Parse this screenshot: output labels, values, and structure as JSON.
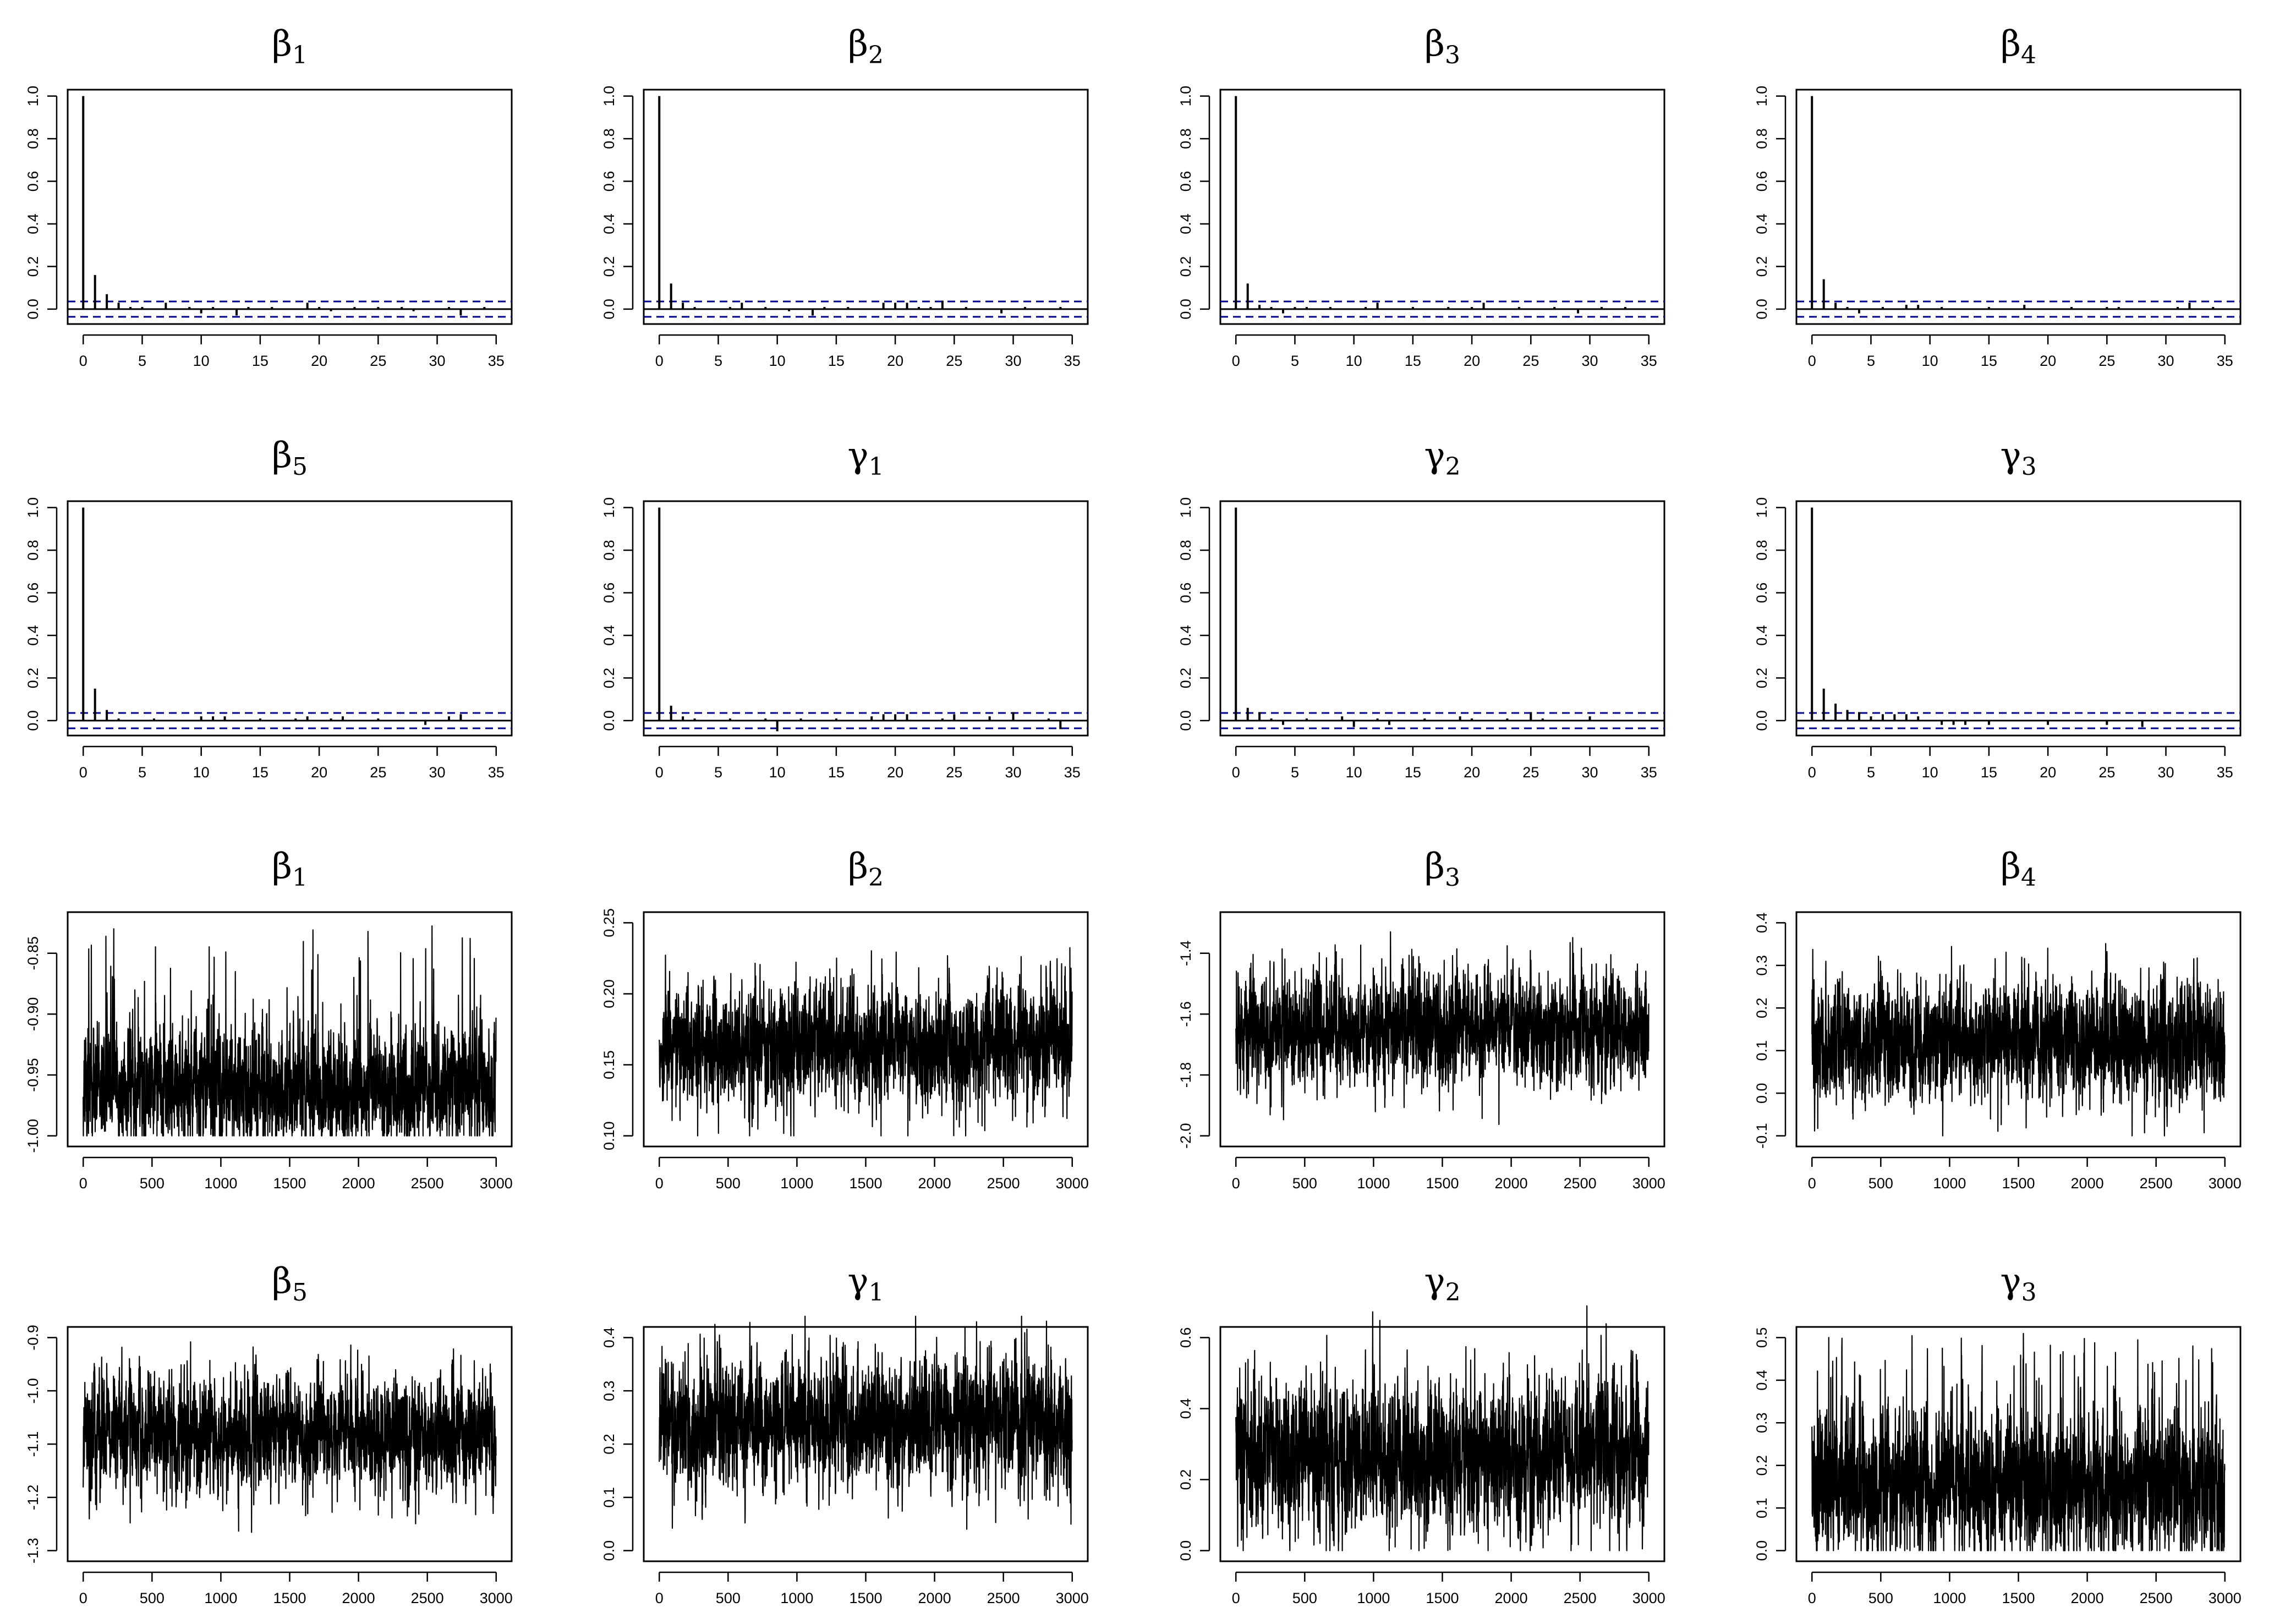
{
  "figure": {
    "background": "#ffffff",
    "line_color": "#000000",
    "ci_color": "#00008B"
  },
  "chart_data": [
    {
      "type": "acf",
      "symbol": "β",
      "subscript": "1",
      "xlim": [
        0,
        35
      ],
      "ylim": [
        0,
        1
      ],
      "xticks": [
        "0",
        "5",
        "10",
        "15",
        "20",
        "25",
        "30",
        "35"
      ],
      "yticks": [
        "0.0",
        "0.2",
        "0.4",
        "0.6",
        "0.8",
        "1.0"
      ],
      "ci": 0.036,
      "lags": [
        0,
        1,
        2,
        3,
        4,
        5,
        6,
        7,
        8,
        9,
        10,
        11,
        12,
        13,
        14,
        15,
        16,
        17,
        18,
        19,
        20,
        21,
        22,
        23,
        24,
        25,
        26,
        27,
        28,
        29,
        30,
        31,
        32,
        33,
        34
      ],
      "values": [
        1.0,
        0.16,
        0.07,
        0.03,
        0.01,
        0.01,
        0.0,
        0.03,
        0.0,
        0.01,
        -0.02,
        0.01,
        0.0,
        -0.03,
        0.01,
        0.0,
        0.01,
        0.0,
        0.0,
        0.03,
        0.01,
        -0.01,
        0.0,
        0.01,
        0.0,
        0.01,
        0.0,
        0.01,
        -0.01,
        0.0,
        0.0,
        0.01,
        -0.03,
        0.0,
        0.01
      ]
    },
    {
      "type": "acf",
      "symbol": "β",
      "subscript": "2",
      "xlim": [
        0,
        35
      ],
      "ylim": [
        0,
        1
      ],
      "xticks": [
        "0",
        "5",
        "10",
        "15",
        "20",
        "25",
        "30",
        "35"
      ],
      "yticks": [
        "0.0",
        "0.2",
        "0.4",
        "0.6",
        "0.8",
        "1.0"
      ],
      "ci": 0.036,
      "lags": [
        0,
        1,
        2,
        3,
        4,
        5,
        6,
        7,
        8,
        9,
        10,
        11,
        12,
        13,
        14,
        15,
        16,
        17,
        18,
        19,
        20,
        21,
        22,
        23,
        24,
        25,
        26,
        27,
        28,
        29,
        30,
        31,
        32,
        33,
        34
      ],
      "values": [
        1.0,
        0.12,
        0.03,
        0.01,
        0.0,
        0.0,
        0.01,
        0.03,
        0.0,
        0.01,
        0.0,
        -0.01,
        0.0,
        -0.03,
        0.01,
        0.0,
        0.01,
        0.0,
        0.0,
        0.03,
        0.03,
        0.03,
        0.01,
        0.01,
        0.04,
        0.0,
        0.01,
        0.0,
        0.0,
        -0.02,
        0.0,
        0.01,
        0.0,
        0.0,
        0.01
      ]
    },
    {
      "type": "acf",
      "symbol": "β",
      "subscript": "3",
      "xlim": [
        0,
        35
      ],
      "ylim": [
        0,
        1
      ],
      "xticks": [
        "0",
        "5",
        "10",
        "15",
        "20",
        "25",
        "30",
        "35"
      ],
      "yticks": [
        "0.0",
        "0.2",
        "0.4",
        "0.6",
        "0.8",
        "1.0"
      ],
      "ci": 0.036,
      "lags": [
        0,
        1,
        2,
        3,
        4,
        5,
        6,
        7,
        8,
        9,
        10,
        11,
        12,
        13,
        14,
        15,
        16,
        17,
        18,
        19,
        20,
        21,
        22,
        23,
        24,
        25,
        26,
        27,
        28,
        29,
        30,
        31,
        32,
        33,
        34
      ],
      "values": [
        1.0,
        0.12,
        0.02,
        0.01,
        -0.02,
        0.01,
        0.01,
        0.0,
        0.01,
        0.0,
        0.0,
        0.01,
        0.03,
        0.0,
        0.0,
        0.01,
        0.0,
        0.0,
        0.01,
        0.0,
        0.01,
        0.03,
        0.0,
        0.0,
        0.01,
        0.0,
        0.0,
        0.01,
        0.0,
        -0.02,
        0.0,
        0.01,
        0.0,
        0.01,
        0.0
      ]
    },
    {
      "type": "acf",
      "symbol": "β",
      "subscript": "4",
      "xlim": [
        0,
        35
      ],
      "ylim": [
        0,
        1
      ],
      "xticks": [
        "0",
        "5",
        "10",
        "15",
        "20",
        "25",
        "30",
        "35"
      ],
      "yticks": [
        "0.0",
        "0.2",
        "0.4",
        "0.6",
        "0.8",
        "1.0"
      ],
      "ci": 0.036,
      "lags": [
        0,
        1,
        2,
        3,
        4,
        5,
        6,
        7,
        8,
        9,
        10,
        11,
        12,
        13,
        14,
        15,
        16,
        17,
        18,
        19,
        20,
        21,
        22,
        23,
        24,
        25,
        26,
        27,
        28,
        29,
        30,
        31,
        32,
        33,
        34
      ],
      "values": [
        1.0,
        0.14,
        0.03,
        0.01,
        -0.02,
        0.0,
        0.01,
        0.0,
        0.02,
        0.02,
        0.0,
        0.01,
        0.0,
        0.0,
        0.0,
        0.01,
        0.0,
        0.0,
        0.02,
        0.0,
        0.0,
        0.0,
        0.01,
        0.0,
        0.0,
        0.01,
        0.01,
        0.0,
        0.0,
        0.0,
        0.0,
        0.01,
        0.03,
        0.0,
        0.01
      ]
    },
    {
      "type": "acf",
      "symbol": "β",
      "subscript": "5",
      "xlim": [
        0,
        35
      ],
      "ylim": [
        0,
        1
      ],
      "xticks": [
        "0",
        "5",
        "10",
        "15",
        "20",
        "25",
        "30",
        "35"
      ],
      "yticks": [
        "0.0",
        "0.2",
        "0.4",
        "0.6",
        "0.8",
        "1.0"
      ],
      "ci": 0.036,
      "lags": [
        0,
        1,
        2,
        3,
        4,
        5,
        6,
        7,
        8,
        9,
        10,
        11,
        12,
        13,
        14,
        15,
        16,
        17,
        18,
        19,
        20,
        21,
        22,
        23,
        24,
        25,
        26,
        27,
        28,
        29,
        30,
        31,
        32,
        33,
        34
      ],
      "values": [
        1.0,
        0.15,
        0.05,
        0.01,
        0.0,
        0.0,
        0.01,
        0.0,
        0.0,
        0.0,
        0.02,
        0.02,
        0.02,
        0.0,
        0.0,
        0.01,
        0.0,
        0.0,
        0.01,
        0.02,
        0.0,
        0.01,
        0.02,
        0.0,
        0.0,
        0.01,
        0.0,
        0.0,
        0.0,
        -0.02,
        0.0,
        0.02,
        0.03,
        0.0,
        0.0
      ]
    },
    {
      "type": "acf",
      "symbol": "γ",
      "subscript": "1",
      "xlim": [
        0,
        35
      ],
      "ylim": [
        0,
        1
      ],
      "xticks": [
        "0",
        "5",
        "10",
        "15",
        "20",
        "25",
        "30",
        "35"
      ],
      "yticks": [
        "0.0",
        "0.2",
        "0.4",
        "0.6",
        "0.8",
        "1.0"
      ],
      "ci": 0.036,
      "lags": [
        0,
        1,
        2,
        3,
        4,
        5,
        6,
        7,
        8,
        9,
        10,
        11,
        12,
        13,
        14,
        15,
        16,
        17,
        18,
        19,
        20,
        21,
        22,
        23,
        24,
        25,
        26,
        27,
        28,
        29,
        30,
        31,
        32,
        33,
        34
      ],
      "values": [
        1.0,
        0.07,
        0.02,
        0.01,
        0.0,
        0.0,
        0.01,
        0.0,
        0.0,
        0.01,
        -0.05,
        0.0,
        0.01,
        0.0,
        0.0,
        0.01,
        0.0,
        0.0,
        0.02,
        0.03,
        0.03,
        0.03,
        0.0,
        0.0,
        0.01,
        0.03,
        0.0,
        0.0,
        0.02,
        0.0,
        0.04,
        0.0,
        0.0,
        0.01,
        -0.04
      ]
    },
    {
      "type": "acf",
      "symbol": "γ",
      "subscript": "2",
      "xlim": [
        0,
        35
      ],
      "ylim": [
        0,
        1
      ],
      "xticks": [
        "0",
        "5",
        "10",
        "15",
        "20",
        "25",
        "30",
        "35"
      ],
      "yticks": [
        "0.0",
        "0.2",
        "0.4",
        "0.6",
        "0.8",
        "1.0"
      ],
      "ci": 0.036,
      "lags": [
        0,
        1,
        2,
        3,
        4,
        5,
        6,
        7,
        8,
        9,
        10,
        11,
        12,
        13,
        14,
        15,
        16,
        17,
        18,
        19,
        20,
        21,
        22,
        23,
        24,
        25,
        26,
        27,
        28,
        29,
        30,
        31,
        32,
        33,
        34
      ],
      "values": [
        1.0,
        0.06,
        0.04,
        0.01,
        -0.02,
        0.0,
        0.01,
        0.0,
        0.0,
        0.02,
        -0.03,
        0.0,
        0.01,
        -0.02,
        0.0,
        0.0,
        0.01,
        0.0,
        0.0,
        0.02,
        0.01,
        0.0,
        0.0,
        0.01,
        0.0,
        0.04,
        0.01,
        0.0,
        0.0,
        0.0,
        0.02,
        0.0,
        0.0,
        0.0,
        0.0
      ]
    },
    {
      "type": "acf",
      "symbol": "γ",
      "subscript": "3",
      "xlim": [
        0,
        35
      ],
      "ylim": [
        0,
        1
      ],
      "xticks": [
        "0",
        "5",
        "10",
        "15",
        "20",
        "25",
        "30",
        "35"
      ],
      "yticks": [
        "0.0",
        "0.2",
        "0.4",
        "0.6",
        "0.8",
        "1.0"
      ],
      "ci": 0.036,
      "lags": [
        0,
        1,
        2,
        3,
        4,
        5,
        6,
        7,
        8,
        9,
        10,
        11,
        12,
        13,
        14,
        15,
        16,
        17,
        18,
        19,
        20,
        21,
        22,
        23,
        24,
        25,
        26,
        27,
        28,
        29,
        30,
        31,
        32,
        33,
        34
      ],
      "values": [
        1.0,
        0.15,
        0.08,
        0.05,
        0.04,
        0.02,
        0.03,
        0.03,
        0.03,
        0.02,
        0.0,
        -0.02,
        -0.02,
        -0.02,
        0.0,
        -0.02,
        0.0,
        0.0,
        0.0,
        0.0,
        -0.02,
        0.0,
        0.0,
        0.0,
        0.0,
        -0.02,
        0.0,
        0.0,
        -0.03,
        0.0,
        0.0,
        0.0,
        0.0,
        0.0,
        0.0
      ]
    },
    {
      "type": "trace",
      "symbol": "β",
      "subscript": "1",
      "xlim": [
        0,
        3000
      ],
      "ylim": [
        -1.0,
        -0.825
      ],
      "xticks": [
        "0",
        "500",
        "1000",
        "1500",
        "2000",
        "2500",
        "3000"
      ],
      "yticks": [
        {
          "v": -1.0,
          "label": "-1.00"
        },
        {
          "v": -0.95,
          "label": "-0.95"
        },
        {
          "v": -0.9,
          "label": "-0.90"
        },
        {
          "v": -0.85,
          "label": "-0.85"
        }
      ],
      "n": 3000,
      "center": -0.962,
      "spread": 0.022,
      "min": -1.0,
      "max": -0.825,
      "skew": "up"
    },
    {
      "type": "trace",
      "symbol": "β",
      "subscript": "2",
      "xlim": [
        0,
        3000
      ],
      "ylim": [
        0.1,
        0.25
      ],
      "xticks": [
        "0",
        "500",
        "1000",
        "1500",
        "2000",
        "2500",
        "3000"
      ],
      "yticks": [
        {
          "v": 0.1,
          "label": "0.10"
        },
        {
          "v": 0.15,
          "label": "0.15"
        },
        {
          "v": 0.2,
          "label": "0.20"
        },
        {
          "v": 0.25,
          "label": "0.25"
        }
      ],
      "n": 3000,
      "center": 0.165,
      "spread": 0.019,
      "min": 0.1,
      "max": 0.25,
      "skew": "none"
    },
    {
      "type": "trace",
      "symbol": "β",
      "subscript": "3",
      "xlim": [
        0,
        3000
      ],
      "ylim": [
        -2.0,
        -1.3
      ],
      "xticks": [
        "0",
        "500",
        "1000",
        "1500",
        "2000",
        "2500",
        "3000"
      ],
      "yticks": [
        {
          "v": -2.0,
          "label": "-2.0"
        },
        {
          "v": -1.8,
          "label": "-1.8"
        },
        {
          "v": -1.6,
          "label": "-1.6"
        },
        {
          "v": -1.4,
          "label": "-1.4"
        }
      ],
      "n": 3000,
      "center": -1.65,
      "spread": 0.085,
      "min": -1.98,
      "max": -1.32,
      "skew": "none"
    },
    {
      "type": "trace",
      "symbol": "β",
      "subscript": "4",
      "xlim": [
        0,
        3000
      ],
      "ylim": [
        -0.1,
        0.4
      ],
      "xticks": [
        "0",
        "500",
        "1000",
        "1500",
        "2000",
        "2500",
        "3000"
      ],
      "yticks": [
        {
          "v": -0.1,
          "label": "-0.1"
        },
        {
          "v": 0.0,
          "label": "0.0"
        },
        {
          "v": 0.1,
          "label": "0.1"
        },
        {
          "v": 0.2,
          "label": "0.2"
        },
        {
          "v": 0.3,
          "label": "0.3"
        },
        {
          "v": 0.4,
          "label": "0.4"
        }
      ],
      "n": 3000,
      "center": 0.125,
      "spread": 0.062,
      "min": -0.1,
      "max": 0.4,
      "skew": "none"
    },
    {
      "type": "trace",
      "symbol": "β",
      "subscript": "5",
      "xlim": [
        0,
        3000
      ],
      "ylim": [
        -1.3,
        -0.9
      ],
      "xticks": [
        "0",
        "500",
        "1000",
        "1500",
        "2000",
        "2500",
        "3000"
      ],
      "yticks": [
        {
          "v": -1.3,
          "label": "-1.3"
        },
        {
          "v": -1.2,
          "label": "-1.2"
        },
        {
          "v": -1.1,
          "label": "-1.1"
        },
        {
          "v": -1.0,
          "label": "-1.0"
        },
        {
          "v": -0.9,
          "label": "-0.9"
        }
      ],
      "n": 3000,
      "center": -1.08,
      "spread": 0.048,
      "min": -1.3,
      "max": -0.88,
      "skew": "none"
    },
    {
      "type": "trace",
      "symbol": "γ",
      "subscript": "1",
      "xlim": [
        0,
        3000
      ],
      "ylim": [
        0.0,
        0.4
      ],
      "xticks": [
        "0",
        "500",
        "1000",
        "1500",
        "2000",
        "2500",
        "3000"
      ],
      "yticks": [
        {
          "v": 0.0,
          "label": "0.0"
        },
        {
          "v": 0.1,
          "label": "0.1"
        },
        {
          "v": 0.2,
          "label": "0.2"
        },
        {
          "v": 0.3,
          "label": "0.3"
        },
        {
          "v": 0.4,
          "label": "0.4"
        }
      ],
      "n": 3000,
      "center": 0.24,
      "spread": 0.055,
      "min": 0.02,
      "max": 0.44,
      "skew": "none"
    },
    {
      "type": "trace",
      "symbol": "γ",
      "subscript": "2",
      "xlim": [
        0,
        3000
      ],
      "ylim": [
        0.0,
        0.6
      ],
      "xticks": [
        "0",
        "500",
        "1000",
        "1500",
        "2000",
        "2500",
        "3000"
      ],
      "yticks": [
        {
          "v": 0.0,
          "label": "0.0"
        },
        {
          "v": 0.2,
          "label": "0.2"
        },
        {
          "v": 0.4,
          "label": "0.4"
        },
        {
          "v": 0.6,
          "label": "0.6"
        }
      ],
      "n": 3000,
      "center": 0.27,
      "spread": 0.1,
      "min": 0.0,
      "max": 0.76,
      "skew": "none"
    },
    {
      "type": "trace",
      "symbol": "γ",
      "subscript": "3",
      "xlim": [
        0,
        3000
      ],
      "ylim": [
        0.0,
        0.5
      ],
      "xticks": [
        "0",
        "500",
        "1000",
        "1500",
        "2000",
        "2500",
        "3000"
      ],
      "yticks": [
        {
          "v": 0.0,
          "label": "0.0"
        },
        {
          "v": 0.1,
          "label": "0.1"
        },
        {
          "v": 0.2,
          "label": "0.2"
        },
        {
          "v": 0.3,
          "label": "0.3"
        },
        {
          "v": 0.4,
          "label": "0.4"
        },
        {
          "v": 0.5,
          "label": "0.5"
        }
      ],
      "n": 3000,
      "center": 0.15,
      "spread": 0.08,
      "min": 0.0,
      "max": 0.52,
      "skew": "up"
    }
  ]
}
